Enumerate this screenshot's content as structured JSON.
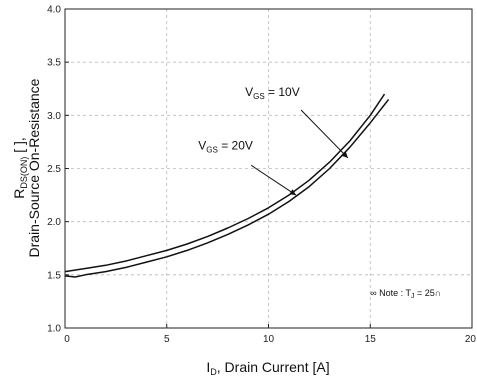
{
  "chart_data": {
    "type": "line",
    "title": "",
    "xlabel_main": "I",
    "xlabel_sub": "D",
    "xlabel_rest": ", Drain Current [A]",
    "ylabel_line1_main": "R",
    "ylabel_line1_sub": "DS(ON)",
    "ylabel_line1_rest": " [  ],",
    "ylabel_line2": "Drain-Source On-Resistance",
    "xlim": [
      0,
      20
    ],
    "ylim": [
      1.0,
      4.0
    ],
    "x_ticks": [
      0,
      5,
      10,
      15,
      20
    ],
    "x_tick_labels": [
      "0",
      "5",
      "10",
      "15",
      "20"
    ],
    "y_ticks": [
      1.0,
      1.5,
      2.0,
      2.5,
      3.0,
      3.5,
      4.0
    ],
    "y_tick_labels": [
      "1.0",
      "1.5",
      "2.0",
      "2.5",
      "3.0",
      "3.5",
      "4.0"
    ],
    "grid": true,
    "series": [
      {
        "name_main": "V",
        "name_sub": "GS",
        "name_rest": " = 10V",
        "x": [
          0,
          1,
          2,
          3,
          4,
          5,
          6,
          7,
          8,
          9,
          10,
          11,
          12,
          13,
          14,
          15,
          15.7
        ],
        "y": [
          1.53,
          1.56,
          1.59,
          1.63,
          1.68,
          1.73,
          1.79,
          1.86,
          1.94,
          2.03,
          2.13,
          2.25,
          2.39,
          2.56,
          2.76,
          3.0,
          3.2
        ]
      },
      {
        "name_main": "V",
        "name_sub": "GS",
        "name_rest": " = 20V",
        "x": [
          0,
          0.5,
          1,
          2,
          3,
          4,
          5,
          6,
          7,
          8,
          9,
          10,
          11,
          12,
          13,
          14,
          15,
          15.9
        ],
        "y": [
          1.49,
          1.48,
          1.5,
          1.53,
          1.57,
          1.62,
          1.67,
          1.73,
          1.8,
          1.88,
          1.97,
          2.07,
          2.19,
          2.33,
          2.5,
          2.7,
          2.93,
          3.15
        ]
      }
    ],
    "note_main": "∞ Note : T",
    "note_sub": "J",
    "note_rest": " = 25∩"
  }
}
